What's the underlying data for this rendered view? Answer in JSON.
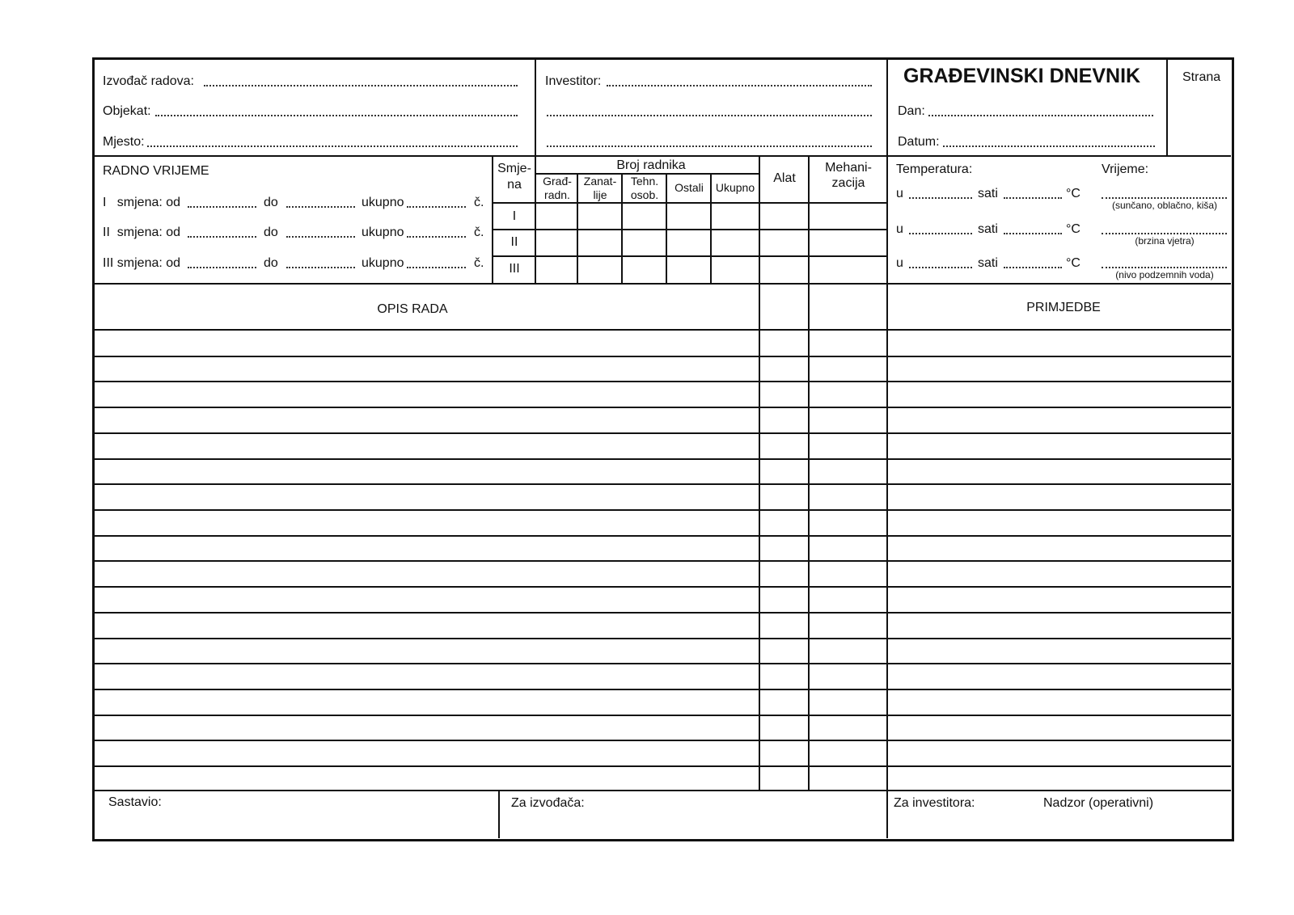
{
  "header": {
    "contractor_label": "Izvođač radova:",
    "object_label": "Objekat:",
    "place_label": "Mjesto:",
    "investor_label": "Investitor:",
    "title": "GRAĐEVINSKI DNEVNIK",
    "page_label": "Strana",
    "day_label": "Dan:",
    "date_label": "Datum:"
  },
  "work_time": {
    "title": "RADNO VRIJEME",
    "shifts": [
      {
        "label": "I   smjena: od",
        "to": "do",
        "total": "ukupno",
        "unit": "č."
      },
      {
        "label": "II  smjena: od",
        "to": "do",
        "total": "ukupno",
        "unit": "č."
      },
      {
        "label": "III smjena: od",
        "to": "do",
        "total": "ukupno",
        "unit": "č."
      }
    ]
  },
  "workers_table": {
    "shift_header": [
      "Smje-",
      "na"
    ],
    "workers_header": "Broj radnika",
    "columns": [
      [
        "Građ-",
        "radn."
      ],
      [
        "Zanat-",
        "lije"
      ],
      [
        "Tehn.",
        "osob."
      ],
      [
        "Ostali"
      ],
      [
        "Ukupno"
      ]
    ],
    "tools": "Alat",
    "machinery": [
      "Mehani-",
      "zacija"
    ],
    "rows": [
      "I",
      "II",
      "III"
    ]
  },
  "weather": {
    "temperature_label": "Temperatura:",
    "conditions_label": "Vrijeme:",
    "at": "u",
    "hours": "sati",
    "unit": "°C",
    "hints": [
      "(sunčano, oblačno, kiša)",
      "(brzina vjetra)",
      "(nivo podzemnih voda)"
    ]
  },
  "log": {
    "description_header": "OPIS RADA",
    "remarks_header": "PRIMJEDBE"
  },
  "footer": {
    "compiled_by": "Sastavio:",
    "for_contractor": "Za izvođača:",
    "for_investor": "Za investitora:",
    "supervision": "Nadzor (operativni)"
  }
}
